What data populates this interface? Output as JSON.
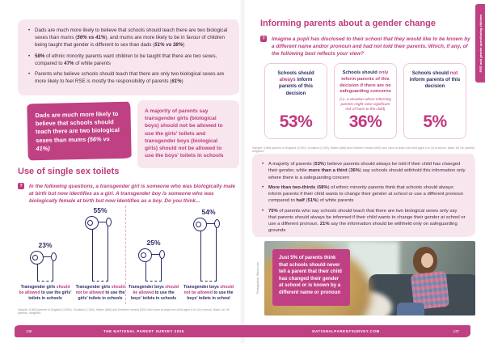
{
  "colors": {
    "accent_pink": "#bc3c7f",
    "callout_pink": "#c04183",
    "light_pink_bg": "#f8e6ef",
    "navy": "#2b2b66",
    "big_stat_pink": "#c2377e"
  },
  "left_page": {
    "page_number": "136",
    "intro_bullets": [
      [
        {
          "t": "Dads are much more likely to believe that schools should teach there are two biological sexes than mums ("
        },
        {
          "t": "56% vs 41%",
          "s": "bi"
        },
        {
          "t": "), and mums are more likely to be in favour of children being taught that gender is different to sex than dads ("
        },
        {
          "t": "51% vs 38%",
          "s": "bi"
        },
        {
          "t": ")"
        }
      ],
      [
        {
          "t": "58%",
          "s": "b"
        },
        {
          "t": " of ethnic minority parents want children to be taught that there are two sexes, compared to "
        },
        {
          "t": "47%",
          "s": "b"
        },
        {
          "t": " of white parents"
        }
      ],
      [
        {
          "t": "Parents who believe schools should teach that there are only two biological sexes are more likely to feel RSE is mostly the responsibility of parents ("
        },
        {
          "t": "61%",
          "s": "bi"
        },
        {
          "t": ")"
        }
      ]
    ],
    "callout_dark": [
      {
        "t": "Dads are much more likely to believe that schools should teach there are two biological sexes than mums "
      },
      {
        "t": "(56% vs 41%)",
        "s": "i"
      }
    ],
    "callout_light": "A majority of parents say transgender girls (biological boys) should not be allowed to use the girls' toilets and transgender boys (biological girls) should not be allowed to use the boys' toilets in schools",
    "section_heading": "Use of single sex toilets",
    "question": "In the following questions, a transgender girl is someone who was biologically male at birth but now identifies as a girl. A transgender boy is someone who was biologically female at birth but now identifies as a boy.  Do you think...",
    "chart": {
      "bars": [
        {
          "pct": "23%",
          "label": [
            {
              "t": "Transgender girls "
            },
            {
              "t": "should be allowed",
              "s": "p"
            },
            {
              "t": " to use the girls' toilets in schools"
            }
          ]
        },
        {
          "pct": "55%",
          "label": [
            {
              "t": "Transgender girls "
            },
            {
              "t": "should not be allowed",
              "s": "p"
            },
            {
              "t": " to use the girls' toilets in schools"
            }
          ]
        },
        {
          "pct": "25%",
          "label": [
            {
              "t": "Transgender boys "
            },
            {
              "t": "should be allowed",
              "s": "p"
            },
            {
              "t": " to use the boys' toilets in schools"
            }
          ]
        },
        {
          "pct": "54%",
          "label": [
            {
              "t": "Transgender boys "
            },
            {
              "t": "should not be allowed",
              "s": "p"
            },
            {
              "t": " to use the boys' toilets in school"
            }
          ]
        }
      ]
    },
    "footnote": "Sample: 5,866 parents in England (3,500), Scotland (1,000), Wales (866) and Northern Ireland (500) who have at least one child aged 4 to 18 in school. Base: All UK parents, weighted"
  },
  "right_page": {
    "page_number": "137",
    "title": "Informing parents about a gender change",
    "question": "Imagine a pupil has disclosed to their school that they would like to be known by a different name and/or pronoun and had not told their parents. Which, if any, of the following best reflects your view?",
    "boxes": [
      {
        "label": [
          {
            "t": "Schools should "
          },
          {
            "t": "always",
            "s": "p"
          },
          {
            "t": " inform parents of this decision"
          }
        ],
        "note": "",
        "pct": "53%"
      },
      {
        "label": [
          {
            "t": "Schools should "
          },
          {
            "t": "only inform parents of this decision if there are no safeguarding concerns",
            "s": "p"
          }
        ],
        "note": "(i.e. a situation where informing parents might raise significant risk of harm to the child)",
        "pct": "36%"
      },
      {
        "label": [
          {
            "t": "Schools should "
          },
          {
            "t": "not",
            "s": "p"
          },
          {
            "t": " inform parents of this decision"
          }
        ],
        "note": "",
        "pct": "5%"
      }
    ],
    "footnote": "Sample: 5,866 parents in England (3,500), Scotland (1,000), Wales (866) and Northern Ireland (500) who have at least one child aged 4 to 18 in school. Base: All UK parents, weighted",
    "bullets": [
      [
        {
          "t": "A majority of parents ("
        },
        {
          "t": "53%",
          "s": "b"
        },
        {
          "t": ") believe parents should always be told if their child has changed their gender, while "
        },
        {
          "t": "more than a third",
          "s": "b"
        },
        {
          "t": " ("
        },
        {
          "t": "36%",
          "s": "b"
        },
        {
          "t": ") say schools should withhold this information only where there is a safeguarding concern"
        }
      ],
      [
        {
          "t": "More than two-thirds",
          "s": "b"
        },
        {
          "t": " ("
        },
        {
          "t": "68%",
          "s": "b"
        },
        {
          "t": ") of ethnic minority parents think that schools should always inform parents if their child wants to change their gender at school or use a different pronoun compared to "
        },
        {
          "t": "half",
          "s": "b"
        },
        {
          "t": " ("
        },
        {
          "t": "51%",
          "s": "b"
        },
        {
          "t": ") of white parents"
        }
      ],
      [
        {
          "t": "75%",
          "s": "b"
        },
        {
          "t": " of parents who say schools should teach that there are two biological sexes only say that parents should always be informed if their child wants to change their gender at school or use a different pronoun. "
        },
        {
          "t": "21%",
          "s": "b"
        },
        {
          "t": " say the information should be withheld only on safeguarding grounds"
        }
      ]
    ],
    "photo_quote": "Just 5% of parents think that schools should never tell a parent that their child has changed their gender at school or is known by a different name or pronoun",
    "photo_credit": "Photography: iStock.com",
    "side_tab": "RSE and gender questioning children"
  },
  "footer": {
    "left_label": "THE NATIONAL PARENT SURVEY 2025",
    "right_label": "NATIONALPARENTSURVEY.COM"
  },
  "chart_data": [
    {
      "type": "bar",
      "title": "Use of single sex toilets",
      "categories": [
        "Transgender girls should be allowed to use the girls' toilets in schools",
        "Transgender girls should not be allowed to use the girls' toilets in schools",
        "Transgender boys should be allowed to use the boys' toilets in schools",
        "Transgender boys should not be allowed to use the boys' toilets in school"
      ],
      "values": [
        23,
        55,
        25,
        54
      ],
      "unit": "%",
      "style": "pictogram-toilet-roll",
      "ylim": [
        0,
        60
      ]
    },
    {
      "type": "bar",
      "title": "Informing parents about a gender change",
      "categories": [
        "Schools should always inform parents of this decision",
        "Schools should only inform parents of this decision if there are no safeguarding concerns",
        "Schools should not inform parents of this decision"
      ],
      "values": [
        53,
        36,
        5
      ],
      "unit": "%",
      "style": "stat-cards"
    }
  ]
}
